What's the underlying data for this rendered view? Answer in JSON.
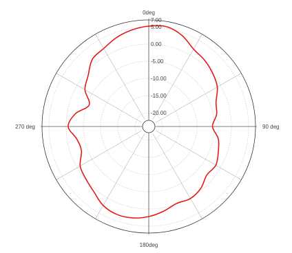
{
  "chart_data": {
    "type": "polar-line",
    "title": "",
    "angle_labels": [
      {
        "angle": 0,
        "text": "0deg"
      },
      {
        "angle": 90,
        "text": "90 deg"
      },
      {
        "angle": 180,
        "text": "180deg"
      },
      {
        "angle": 270,
        "text": "270 deg"
      }
    ],
    "radial_tick_labels": [
      "7.00",
      "5.00",
      "0.00",
      "-5.00",
      "-10.00",
      "-15.00",
      "-20.00"
    ],
    "radial_ticks": [
      {
        "value": 7,
        "r_index": 0
      },
      {
        "value": 5,
        "r_index": 0.87
      },
      {
        "value": 0,
        "r_index": 1.85
      },
      {
        "value": -5,
        "r_index": 2.85
      },
      {
        "value": -10,
        "r_index": 3.85
      },
      {
        "value": -15,
        "r_index": 4.85
      },
      {
        "value": -20,
        "r_index": 5.85
      }
    ],
    "radial_range": [
      -24,
      7
    ],
    "angular_grid_step_deg": 30,
    "grid": true,
    "series": [
      {
        "color": "#e31a1c",
        "angle_deg": [
          0,
          10,
          20,
          30,
          40,
          50,
          60,
          70,
          80,
          90,
          100,
          110,
          120,
          130,
          140,
          150,
          160,
          170,
          180,
          190,
          200,
          210,
          220,
          230,
          240,
          250,
          260,
          270,
          280,
          290,
          300,
          310,
          320,
          330,
          340,
          350
        ],
        "value": [
          5.2,
          5.5,
          4.2,
          2.0,
          1.2,
          0.2,
          -1.0,
          -3.2,
          -4.0,
          -5.5,
          -3.5,
          -2.5,
          -1.5,
          -2.0,
          -0.5,
          0.2,
          -0.2,
          1.0,
          2.2,
          3.0,
          3.2,
          2.5,
          0.8,
          -0.2,
          -1.0,
          -3.2,
          -2.8,
          -0.6,
          -2.4,
          -5.6,
          -2.6,
          -1.0,
          1.5,
          2.2,
          3.5,
          4.5
        ]
      }
    ]
  },
  "colors": {
    "grid": "#999999",
    "ring": "#cccccc",
    "outer": "#333333",
    "trace": "#e31a1c"
  }
}
